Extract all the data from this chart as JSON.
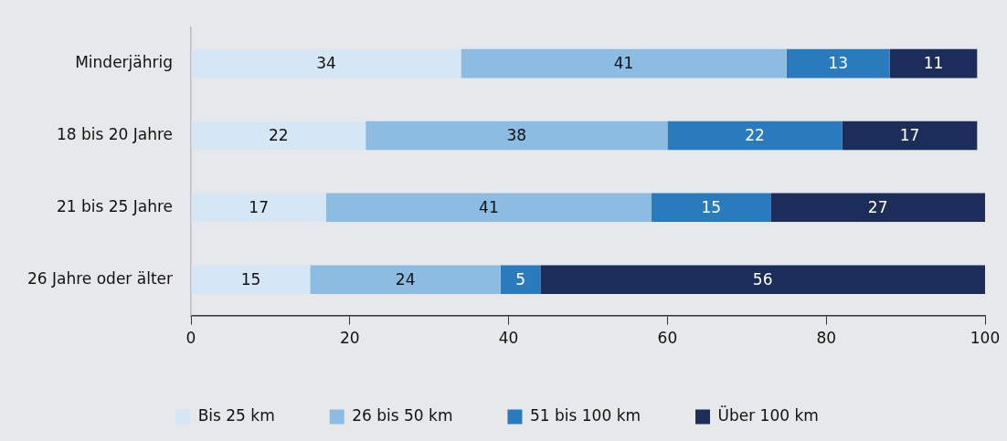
{
  "chart_data": {
    "type": "bar",
    "orientation": "horizontal",
    "stacked": true,
    "categories": [
      "Minderjährig",
      "18 bis 20 Jahre",
      "21 bis 25 Jahre",
      "26 Jahre oder älter"
    ],
    "series": [
      {
        "name": "Bis 25 km",
        "color": "#d5e6f4",
        "values": [
          34,
          22,
          17,
          15
        ]
      },
      {
        "name": "26 bis 50 km",
        "color": "#8dbce3",
        "values": [
          41,
          38,
          41,
          24
        ]
      },
      {
        "name": "51 bis 100 km",
        "color": "#2a7bbd",
        "values": [
          13,
          22,
          15,
          5
        ]
      },
      {
        "name": "Über 100 km",
        "color": "#1b2d58",
        "values": [
          11,
          17,
          27,
          56
        ]
      }
    ],
    "xlim": [
      0,
      100
    ],
    "xticks": [
      0,
      20,
      40,
      60,
      80,
      100
    ],
    "grid": false,
    "legend": "bottom",
    "data_labels": true
  }
}
